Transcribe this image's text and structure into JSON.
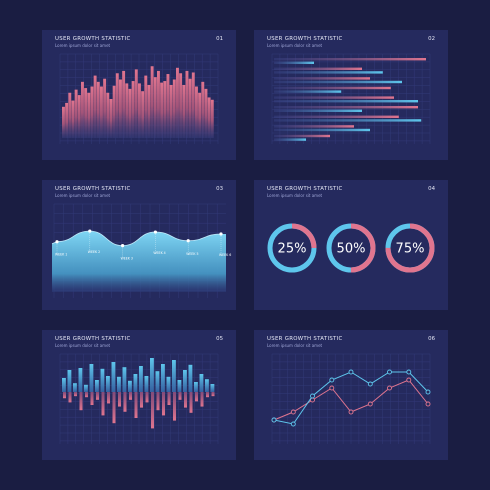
{
  "colors": {
    "background": "#1a1d42",
    "panel": "#252a5e",
    "grid": "#333a78",
    "pink": "#e0758f",
    "blue": "#5ec6ec",
    "text": "#e6e8f6"
  },
  "panels": [
    {
      "title": "USER GROWTH STATISTIC",
      "subtitle": "Lorem ipsum dolor sit amet",
      "number": "01"
    },
    {
      "title": "USER GROWTH STATISTIC",
      "subtitle": "Lorem ipsum dolor sit amet",
      "number": "02"
    },
    {
      "title": "USER GROWTH STATISTIC",
      "subtitle": "Lorem ipsum dolor sit amet",
      "number": "03"
    },
    {
      "title": "USER GROWTH STATISTIC",
      "subtitle": "Lorem ipsum dolor sit amet",
      "number": "04"
    },
    {
      "title": "USER GROWTH STATISTIC",
      "subtitle": "Lorem ipsum dolor sit amet",
      "number": "05"
    },
    {
      "title": "USER GROWTH STATISTIC",
      "subtitle": "Lorem ipsum dolor sit amet",
      "number": "06"
    }
  ],
  "chart_data": [
    {
      "type": "bar",
      "grid": true,
      "ylim": [
        0,
        100
      ],
      "values": [
        40,
        45,
        58,
        48,
        62,
        55,
        72,
        64,
        58,
        66,
        80,
        72,
        66,
        76,
        58,
        50,
        67,
        83,
        75,
        86,
        70,
        63,
        73,
        88,
        70,
        60,
        80,
        68,
        92,
        78,
        86,
        71,
        73,
        82,
        68,
        75,
        90,
        83,
        68,
        86,
        76,
        84,
        66,
        58,
        72,
        63,
        52,
        49
      ]
    },
    {
      "type": "bar",
      "orientation": "horizontal",
      "grid": true,
      "xlim": [
        0,
        100
      ],
      "series": [
        {
          "color": "#e0758f",
          "values": [
            95,
            55,
            60,
            73,
            75,
            90,
            78,
            50,
            35
          ]
        },
        {
          "color": "#5ec6ec",
          "values": [
            25,
            68,
            80,
            42,
            90,
            55,
            92,
            60,
            20
          ]
        }
      ]
    },
    {
      "type": "area",
      "grid": true,
      "categories": [
        "WEEK 1",
        "WEEK 2",
        "WEEK 3",
        "WEEK 4",
        "WEEK 5",
        "WEEK 6"
      ],
      "ylim": [
        0,
        100
      ],
      "values": [
        54,
        65,
        50,
        64,
        55,
        62
      ]
    },
    {
      "type": "pie",
      "variant": "donut",
      "values": [
        25,
        50,
        75
      ],
      "labels": [
        "25%",
        "50%",
        "75%"
      ]
    },
    {
      "type": "bar",
      "grid": true,
      "ylim": [
        -100,
        100
      ],
      "series": [
        {
          "color": "#5ec6ec",
          "values": [
            35,
            55,
            22,
            60,
            18,
            70,
            30,
            58,
            40,
            75,
            38,
            62,
            28,
            45,
            65,
            40,
            85,
            52,
            70,
            38,
            80,
            30,
            55,
            68,
            25,
            45,
            32,
            20
          ]
        },
        {
          "color": "#e0758f",
          "values": [
            -12,
            -20,
            -8,
            -35,
            -10,
            -25,
            -15,
            -45,
            -22,
            -60,
            -28,
            -38,
            -15,
            -50,
            -30,
            -20,
            -70,
            -35,
            -45,
            -25,
            -55,
            -15,
            -30,
            -40,
            -18,
            -28,
            -10,
            -8
          ]
        }
      ]
    },
    {
      "type": "line",
      "grid": true,
      "ylim": [
        0,
        100
      ],
      "x": [
        0,
        1,
        2,
        3,
        4,
        5,
        6,
        7,
        8
      ],
      "series": [
        {
          "color": "#e0758f",
          "values": [
            25,
            35,
            50,
            65,
            35,
            45,
            65,
            75,
            45
          ]
        },
        {
          "color": "#5ec6ec",
          "values": [
            25,
            20,
            55,
            75,
            85,
            70,
            85,
            85,
            60
          ]
        }
      ]
    }
  ]
}
